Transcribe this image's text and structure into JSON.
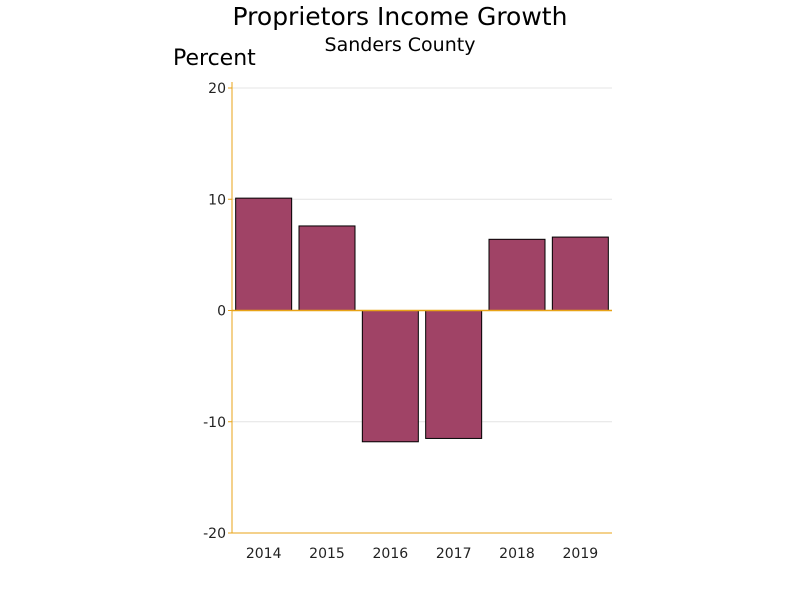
{
  "chart_data": {
    "type": "bar",
    "title": "Proprietors Income Growth",
    "subtitle": "Sanders County",
    "xlabel": "",
    "ylabel": "Percent",
    "categories": [
      "2014",
      "2015",
      "2016",
      "2017",
      "2018",
      "2019"
    ],
    "values": [
      10.1,
      7.6,
      -11.8,
      -11.5,
      6.4,
      6.6
    ],
    "ylim": [
      -20,
      20
    ],
    "yticks": [
      -20,
      -10,
      0,
      10,
      20
    ],
    "ytick_labels": [
      "-20",
      "-10",
      "0",
      "10",
      "20"
    ],
    "grid": true,
    "legend": "none"
  },
  "colors": {
    "bar_fill": "#A04366",
    "bar_stroke": "#000000",
    "axis": "#E8A317",
    "grid": "#E4E4E4"
  }
}
